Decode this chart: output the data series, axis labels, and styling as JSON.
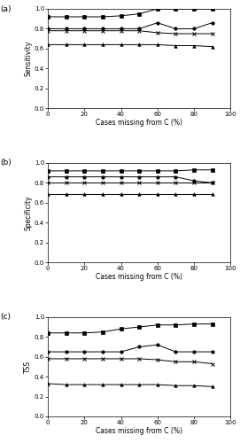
{
  "x": [
    0,
    10,
    20,
    30,
    40,
    50,
    60,
    70,
    80,
    90
  ],
  "sensitivity": {
    "B_squares": [
      0.92,
      0.92,
      0.92,
      0.92,
      0.93,
      0.95,
      1.0,
      1.0,
      1.0,
      1.0
    ],
    "C_circles": [
      0.8,
      0.8,
      0.8,
      0.8,
      0.8,
      0.8,
      0.86,
      0.8,
      0.8,
      0.86
    ],
    "A_crosses": [
      0.78,
      0.78,
      0.78,
      0.78,
      0.78,
      0.78,
      0.76,
      0.75,
      0.75,
      0.75
    ],
    "D_triangles": [
      0.64,
      0.64,
      0.64,
      0.64,
      0.64,
      0.64,
      0.64,
      0.63,
      0.63,
      0.62
    ]
  },
  "specificity": {
    "B_squares": [
      0.92,
      0.92,
      0.92,
      0.92,
      0.92,
      0.92,
      0.92,
      0.92,
      0.93,
      0.93
    ],
    "C_circles": [
      0.86,
      0.86,
      0.86,
      0.86,
      0.86,
      0.86,
      0.86,
      0.86,
      0.82,
      0.8
    ],
    "A_crosses": [
      0.8,
      0.8,
      0.8,
      0.8,
      0.8,
      0.8,
      0.8,
      0.8,
      0.8,
      0.8
    ],
    "D_triangles": [
      0.69,
      0.69,
      0.69,
      0.69,
      0.69,
      0.69,
      0.69,
      0.69,
      0.69,
      0.69
    ]
  },
  "tss": {
    "B_squares": [
      0.84,
      0.84,
      0.84,
      0.85,
      0.88,
      0.9,
      0.92,
      0.92,
      0.93,
      0.93
    ],
    "C_circles": [
      0.65,
      0.65,
      0.65,
      0.65,
      0.65,
      0.7,
      0.72,
      0.65,
      0.65,
      0.65
    ],
    "A_crosses": [
      0.58,
      0.58,
      0.58,
      0.58,
      0.58,
      0.58,
      0.57,
      0.55,
      0.55,
      0.53
    ],
    "D_triangles": [
      0.33,
      0.32,
      0.32,
      0.32,
      0.32,
      0.32,
      0.32,
      0.31,
      0.31,
      0.3
    ]
  },
  "color": "black",
  "panel_labels": [
    "(a)",
    "(b)",
    "(c)"
  ],
  "ylabels": [
    "Sensitivity",
    "Specificity",
    "TSS"
  ],
  "xlabel": "Cases missing from C (%)",
  "xlim": [
    0,
    100
  ],
  "ylim": [
    0.0,
    1.0
  ],
  "yticks": [
    0.0,
    0.2,
    0.4,
    0.6,
    0.8,
    1.0
  ],
  "xticks": [
    0,
    20,
    40,
    60,
    80,
    100
  ],
  "markersize": 2.5,
  "linewidth": 0.7,
  "tick_labelsize": 5.0,
  "axis_labelsize": 5.5,
  "panel_label_fontsize": 6.5
}
